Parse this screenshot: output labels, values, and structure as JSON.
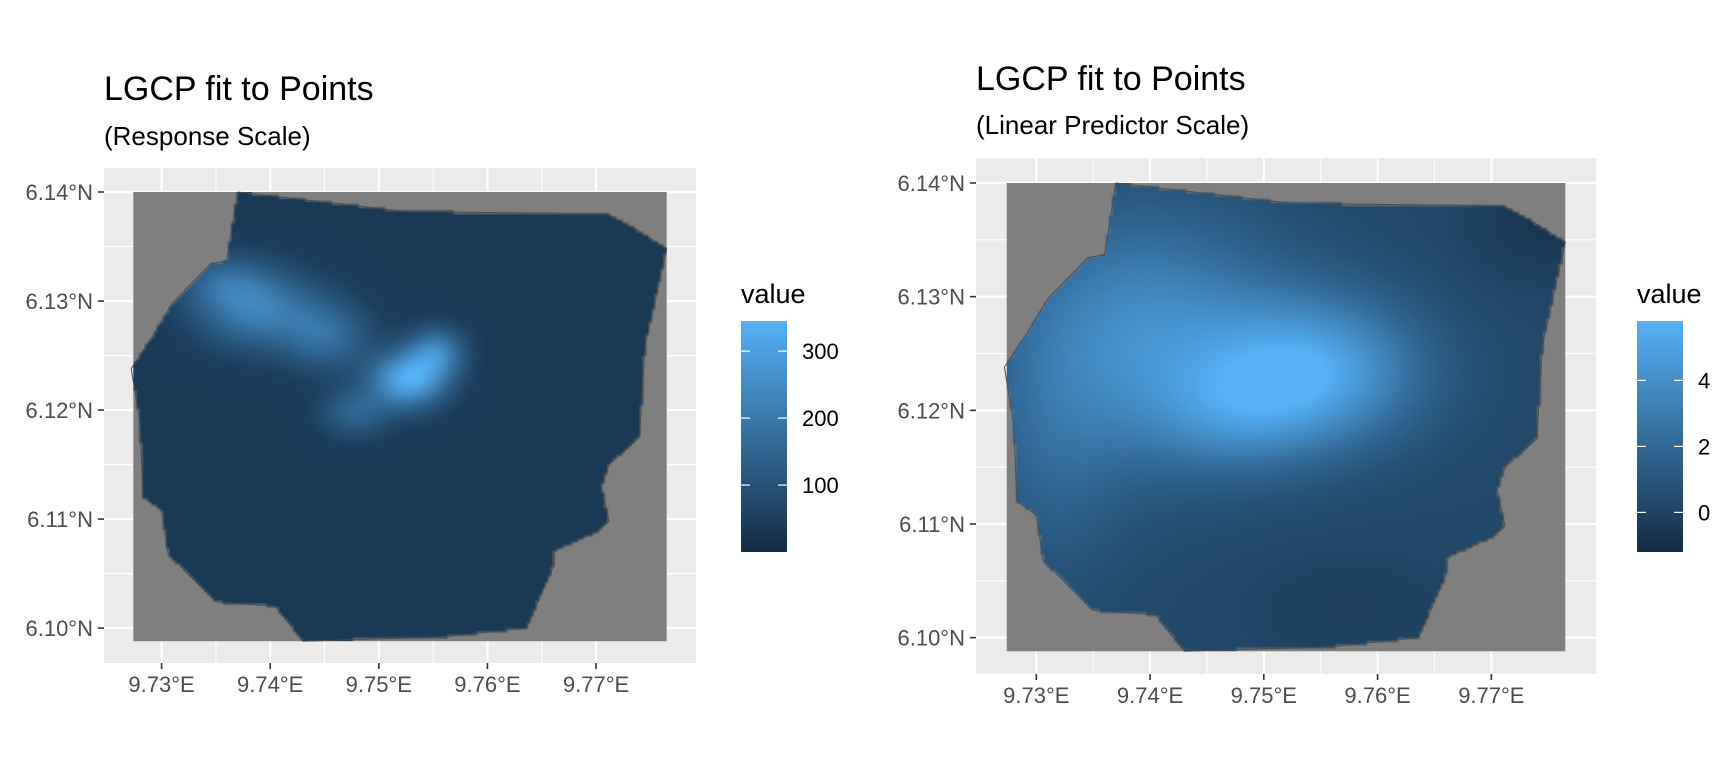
{
  "chart_data": [
    {
      "type": "heatmap",
      "title": "LGCP fit to Points",
      "subtitle": "(Response Scale)",
      "xlabel": "",
      "ylabel": "",
      "x_ticks": [
        "9.73°E",
        "9.74°E",
        "9.75°E",
        "9.76°E",
        "9.77°E"
      ],
      "x_tick_values": [
        9.73,
        9.74,
        9.75,
        9.76,
        9.77
      ],
      "y_ticks": [
        "6.14°N",
        "6.13°N",
        "6.12°N",
        "6.11°N",
        "6.10°N"
      ],
      "y_tick_values": [
        6.14,
        6.13,
        6.12,
        6.11,
        6.1
      ],
      "xlim": [
        9.7247,
        9.7792
      ],
      "ylim": [
        6.0968,
        6.1422
      ],
      "raster_extent": {
        "x": [
          9.7274,
          9.7765
        ],
        "y": [
          6.0988,
          6.14
        ]
      },
      "legend": {
        "title": "value",
        "labels": [
          "300",
          "200",
          "100"
        ],
        "label_values": [
          300,
          200,
          100
        ],
        "range": [
          0,
          345
        ],
        "position": "right"
      },
      "colors": {
        "low": "#132b43",
        "high": "#56b1f7",
        "background": "#ebebeb",
        "grid": "#ffffff",
        "na_fill": "#7f7f7f",
        "boundary": "#4d4d4d"
      },
      "base_value": 35,
      "hotspots": [
        {
          "x": 9.7527,
          "y": 6.1228,
          "sx": 0.0024,
          "sy": 0.0018,
          "amp": 290
        },
        {
          "x": 9.7553,
          "y": 6.1253,
          "sx": 0.0018,
          "sy": 0.0016,
          "amp": 180
        },
        {
          "x": 9.7388,
          "y": 6.1293,
          "sx": 0.0038,
          "sy": 0.0025,
          "amp": 180
        },
        {
          "x": 9.7452,
          "y": 6.1268,
          "sx": 0.0028,
          "sy": 0.0022,
          "amp": 130
        },
        {
          "x": 9.7478,
          "y": 6.1198,
          "sx": 0.0022,
          "sy": 0.0016,
          "amp": 110
        },
        {
          "x": 9.7355,
          "y": 6.1318,
          "sx": 0.0028,
          "sy": 0.0018,
          "amp": 90
        }
      ]
    },
    {
      "type": "heatmap",
      "title": "LGCP fit to Points",
      "subtitle": "(Linear Predictor Scale)",
      "xlabel": "",
      "ylabel": "",
      "x_ticks": [
        "9.73°E",
        "9.74°E",
        "9.75°E",
        "9.76°E",
        "9.77°E"
      ],
      "x_tick_values": [
        9.73,
        9.74,
        9.75,
        9.76,
        9.77
      ],
      "y_ticks": [
        "6.14°N",
        "6.13°N",
        "6.12°N",
        "6.11°N",
        "6.10°N"
      ],
      "y_tick_values": [
        6.14,
        6.13,
        6.12,
        6.11,
        6.1
      ],
      "xlim": [
        9.7247,
        9.7792
      ],
      "ylim": [
        6.0968,
        6.1422
      ],
      "raster_extent": {
        "x": [
          9.7274,
          9.7765
        ],
        "y": [
          6.0988,
          6.14
        ]
      },
      "legend": {
        "title": "value",
        "labels": [
          "4",
          "2",
          "0"
        ],
        "label_values": [
          4,
          2,
          0
        ],
        "range": [
          -1.2,
          5.8
        ],
        "position": "right"
      },
      "colors": {
        "low": "#132b43",
        "high": "#56b1f7",
        "background": "#ebebeb",
        "grid": "#ffffff",
        "na_fill": "#7f7f7f",
        "boundary": "#4d4d4d"
      },
      "base_value": 0.3,
      "hotspots": [
        {
          "x": 9.7545,
          "y": 6.1235,
          "sx": 0.0065,
          "sy": 0.0045,
          "amp": 4.6
        },
        {
          "x": 9.7395,
          "y": 6.1265,
          "sx": 0.0085,
          "sy": 0.0075,
          "amp": 3.6
        },
        {
          "x": 9.7475,
          "y": 6.1195,
          "sx": 0.0055,
          "sy": 0.0035,
          "amp": 1.8
        },
        {
          "x": 9.7315,
          "y": 6.1155,
          "sx": 0.0045,
          "sy": 0.0075,
          "amp": 1.2
        },
        {
          "x": 9.7745,
          "y": 6.1365,
          "sx": 0.0045,
          "sy": 0.0035,
          "amp": -0.9
        },
        {
          "x": 9.7575,
          "y": 6.1025,
          "sx": 0.0065,
          "sy": 0.0035,
          "amp": -0.5
        }
      ]
    }
  ],
  "study_area_boundary": [
    [
      9.737,
      6.14
    ],
    [
      9.7525,
      6.1382
    ],
    [
      9.771,
      6.138
    ],
    [
      9.7738,
      6.1365
    ],
    [
      9.7765,
      6.1348
    ],
    [
      9.7745,
      6.1258
    ],
    [
      9.774,
      6.1175
    ],
    [
      9.7712,
      6.115
    ],
    [
      9.7705,
      6.113
    ],
    [
      9.7712,
      6.1098
    ],
    [
      9.77,
      6.1088
    ],
    [
      9.766,
      6.107
    ],
    [
      9.766,
      6.1055
    ],
    [
      9.7636,
      6.1
    ],
    [
      9.756,
      6.0992
    ],
    [
      9.743,
      6.0988
    ],
    [
      9.7405,
      6.102
    ],
    [
      9.735,
      6.1024
    ],
    [
      9.7306,
      6.1068
    ],
    [
      9.73,
      6.1108
    ],
    [
      9.7283,
      6.112
    ],
    [
      9.728,
      6.119
    ],
    [
      9.7272,
      6.1238
    ],
    [
      9.729,
      6.1265
    ],
    [
      9.731,
      6.1298
    ],
    [
      9.7345,
      6.1334
    ],
    [
      9.736,
      6.1337
    ]
  ]
}
